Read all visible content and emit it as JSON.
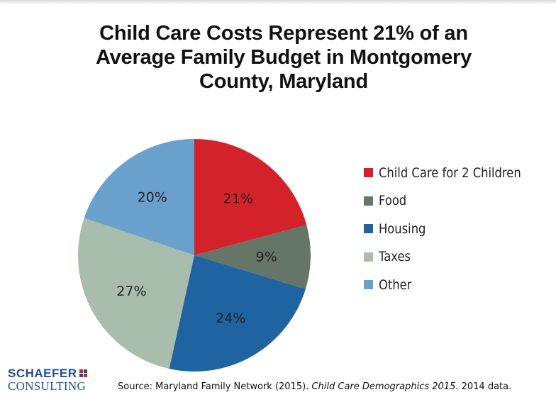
{
  "chart_data": {
    "type": "pie",
    "title": "Child Care Costs Represent 21% of an Average Family Budget in Montgomery County, Maryland",
    "title_lines": [
      "Child Care Costs Represent 21% of an",
      "Average Family Budget in Montgomery",
      "County, Maryland"
    ],
    "slices": [
      {
        "label": "Child Care for 2 Children",
        "value": 21,
        "value_label": "21%",
        "color": "#d3222a"
      },
      {
        "label": "Food",
        "value": 9,
        "value_label": "9%",
        "color": "#657568"
      },
      {
        "label": "Housing",
        "value": 24,
        "value_label": "24%",
        "color": "#1f63a0"
      },
      {
        "label": "Taxes",
        "value": 27,
        "value_label": "27%",
        "color": "#a9bdad"
      },
      {
        "label": "Other",
        "value": 20,
        "value_label": "20%",
        "color": "#6aa1cc"
      }
    ],
    "legend_position": "right",
    "start": "top",
    "direction": "clockwise"
  },
  "source": {
    "prefix": "Source: Maryland Family Network (2015). ",
    "italic": "Child Care Demographics 2015.",
    "suffix": " 2014 data."
  },
  "logo": {
    "top_text": "SCHAEFER",
    "bottom_text": "CONSULTING",
    "mark_colors": [
      "#d3222a",
      "#1f4e9a",
      "#1f4e9a",
      "#d3222a"
    ]
  }
}
